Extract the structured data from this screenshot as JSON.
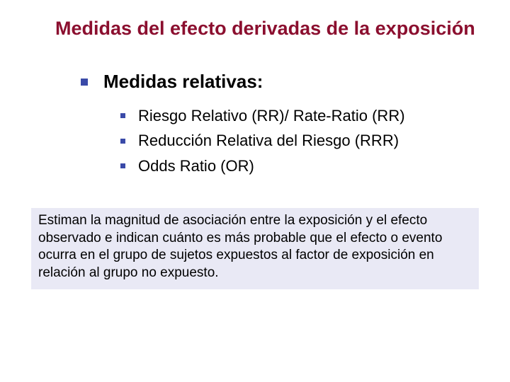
{
  "title": "Medidas del efecto derivadas de la exposición",
  "section": {
    "heading": "Medidas relativas:",
    "items": [
      "Riesgo Relativo (RR)/ Rate-Ratio (RR)",
      "Reducción Relativa del Riesgo (RRR)",
      "Odds Ratio (OR)"
    ]
  },
  "callout": "Estiman la magnitud de asociación entre la exposición y el efecto observado e indican cuánto es más probable que el efecto o evento ocurra en el grupo de sujetos expuestos al factor de exposición en relación al grupo no expuesto.",
  "style": {
    "title_color": "#8b0f2f",
    "body_color": "#000000",
    "bullet_color": "#3a4aa8",
    "callout_bg": "#e9e9f5",
    "background": "#ffffff",
    "title_fontsize": 27,
    "section_heading_fontsize": 26,
    "item_fontsize": 22,
    "callout_fontsize": 19
  }
}
